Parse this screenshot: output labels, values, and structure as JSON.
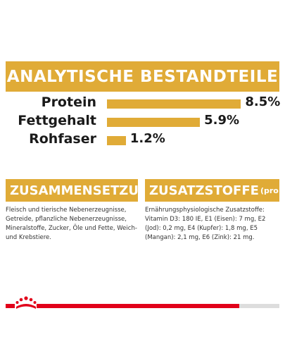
{
  "analytics": {
    "title": "ANALYTISCHE BESTANDTEILE",
    "rows": [
      {
        "label": "Protein",
        "value": "8.5%",
        "amount": 8.5
      },
      {
        "label": "Fettgehalt",
        "value": "5.9%",
        "amount": 5.9
      },
      {
        "label": "Rohfaser",
        "value": "1.2%",
        "amount": 1.2
      }
    ]
  },
  "composition": {
    "title": "ZUSAMMENSETZUNG",
    "text": "Fleisch und tierische Nebenerzeugnisse, Getreide, pflanzliche Nebenerzeugnisse, Mineralstoffe, Zucker, Öle und Fette, Weich- und Krebstiere."
  },
  "additives": {
    "title": "ZUSATZSTOFFE",
    "unit": "(pro kg)",
    "text": "Ernährungsphysiologische Zusatzstoffe: Vitamin D3: 180 IE, E1 (Eisen): 7 mg, E2 (Jod): 0,2 mg, E4 (Kupfer): 1,8 mg, E5 (Mangan): 2,1 mg, E6 (Zink): 21 mg."
  },
  "colors": {
    "accent": "#e0ab37",
    "brand_red": "#e1001a"
  },
  "footer": {
    "logo_icon": "royal-canin-crown-logo-icon"
  }
}
